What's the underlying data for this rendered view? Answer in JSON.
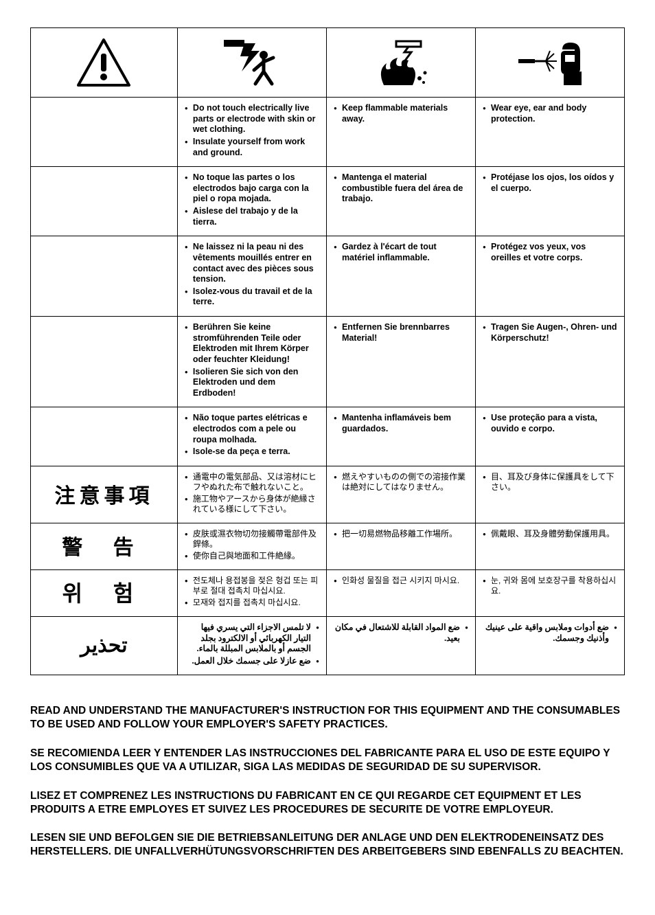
{
  "colors": {
    "text": "#000000",
    "background": "#ffffff",
    "border": "#000000"
  },
  "icons": {
    "warning": "warning-triangle",
    "shock": "electric-shock-person",
    "fire": "fire-explosion",
    "ppe": "welding-ppe"
  },
  "labels": {
    "ja": "注意事項",
    "zh": "警 告",
    "ko": "위 험",
    "ar": "تحذير"
  },
  "rows": {
    "en": {
      "c1": [
        "Do not touch electrically live parts or electrode with skin or wet clothing.",
        "Insulate yourself from work and ground."
      ],
      "c2": [
        "Keep flammable materials away."
      ],
      "c3": [
        "Wear eye, ear and body protection."
      ]
    },
    "es": {
      "c1": [
        "No toque las partes o los electrodos bajo carga con la piel o ropa mojada.",
        "Aislese del trabajo y de la tierra."
      ],
      "c2": [
        "Mantenga el material combustible fuera del área de trabajo."
      ],
      "c3": [
        "Protéjase los ojos, los oídos y el cuerpo."
      ]
    },
    "fr": {
      "c1": [
        "Ne laissez ni la peau ni des vêtements mouillés entrer en contact avec des pièces sous tension.",
        "Isolez-vous du travail et de la terre."
      ],
      "c2": [
        "Gardez à l'écart de tout matériel inflammable."
      ],
      "c3": [
        "Protégez vos yeux, vos oreilles et votre corps."
      ]
    },
    "de": {
      "c1": [
        "Berühren Sie keine stromführenden Teile oder Elektroden mit Ihrem Körper oder feuchter Kleidung!",
        "Isolieren Sie sich von den Elektroden und dem Erdboden!"
      ],
      "c2": [
        "Entfernen Sie brennbarres Material!"
      ],
      "c3": [
        "Tragen Sie Augen-, Ohren- und Körperschutz!"
      ]
    },
    "pt": {
      "c1": [
        "Não toque partes elétricas e electrodos com a pele ou roupa molhada.",
        "Isole-se da peça e terra."
      ],
      "c2": [
        "Mantenha inflamáveis bem guardados."
      ],
      "c3": [
        "Use proteção para a vista, ouvido e corpo."
      ]
    },
    "ja": {
      "c1": [
        "通電中の電気部品、又は溶材にヒフやぬれた布で触れないこと。",
        "施工物やアースから身体が絶縁されている様にして下さい。"
      ],
      "c2": [
        "燃えやすいものの側での溶接作業は絶対にしてはなりません。"
      ],
      "c3": [
        "目、耳及び身体に保護具をして下さい。"
      ]
    },
    "zh": {
      "c1": [
        "皮肤或濕衣物切勿接觸帶電部件及銲條。",
        "使你自己與地面和工件絶緣。"
      ],
      "c2": [
        "把一切易燃物品移離工作場所。"
      ],
      "c3": [
        "佩戴眼、耳及身體勞動保護用具。"
      ]
    },
    "ko": {
      "c1": [
        "전도체나 용접봉을 젖은 헝겁 또는 피부로 절대 접촉치 마십시요.",
        "모재와 접지를 접촉치 마십시요."
      ],
      "c2": [
        "인화성 물질을 접근 시키지 마시요."
      ],
      "c3": [
        "눈, 귀와 몸에 보호장구를 착용하십시요."
      ]
    },
    "ar": {
      "c1": [
        "لا تلمس الاجزاء التي يسري فيها التيار الكهربائي أو الالكترود بجلد الجسم أو بالملابس المبللة بالماء.",
        "ضع عازلا على جسمك خلال العمل."
      ],
      "c2": [
        "ضع المواد القابلة للاشتعال في مكان بعيد."
      ],
      "c3": [
        "ضع أدوات وملابس واقية على عينيك وأذنيك وجسمك."
      ]
    }
  },
  "footer": {
    "p1": "READ AND UNDERSTAND THE MANUFACTURER'S INSTRUCTION FOR THIS EQUIPMENT AND THE CONSUMABLES TO BE USED AND FOLLOW YOUR EMPLOYER'S SAFETY PRACTICES.",
    "p2": "SE RECOMIENDA LEER Y ENTENDER LAS INSTRUCCIONES DEL FABRICANTE PARA EL USO DE ESTE EQUIPO Y LOS CONSUMIBLES QUE VA A UTILIZAR, SIGA LAS MEDIDAS DE SEGURIDAD DE SU SUPERVISOR.",
    "p3": "LISEZ ET COMPRENEZ LES INSTRUCTIONS DU FABRICANT EN CE QUI REGARDE CET EQUIPMENT ET LES PRODUITS A ETRE EMPLOYES ET SUIVEZ LES PROCEDURES DE SECURITE DE VOTRE EMPLOYEUR.",
    "p4": "LESEN SIE UND BEFOLGEN SIE DIE BETRIEBSANLEITUNG DER ANLAGE UND DEN ELEKTRODENEINSATZ DES HERSTELLERS. DIE UNFALLVERHÜTUNGSVORSCHRIFTEN DES ARBEITGEBERS SIND EBENFALLS ZU BEACHTEN."
  }
}
